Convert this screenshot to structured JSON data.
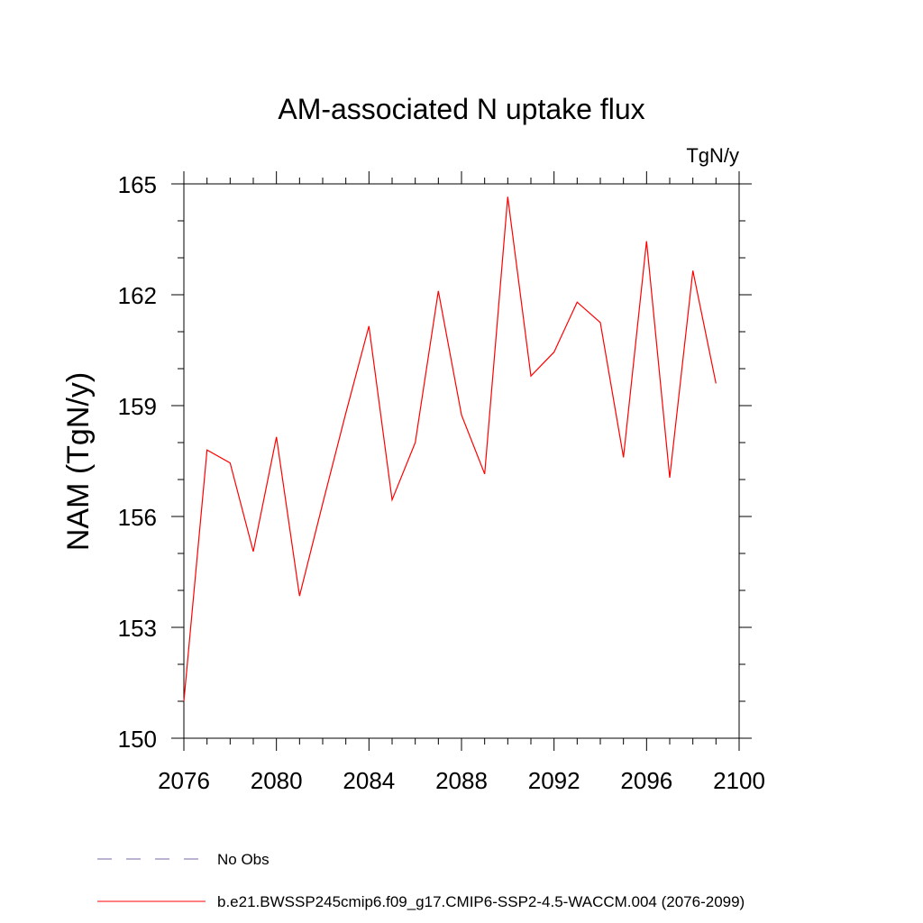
{
  "chart_data": {
    "type": "line",
    "title": "AM-associated N uptake flux",
    "units_label": "TgN/y",
    "xlabel": "",
    "ylabel": "NAM  (TgN/y)",
    "xlim": [
      2076,
      2100
    ],
    "ylim": [
      150,
      165
    ],
    "x_ticks": [
      2076,
      2080,
      2084,
      2088,
      2092,
      2096,
      2100
    ],
    "y_ticks": [
      150,
      153,
      156,
      159,
      162,
      165
    ],
    "x_tick_labels": [
      "2076",
      "2080",
      "2084",
      "2088",
      "2092",
      "2096",
      "2100"
    ],
    "y_tick_labels": [
      "150",
      "153",
      "156",
      "159",
      "162",
      "165"
    ],
    "grid": false,
    "series": [
      {
        "name": "b.e21.BWSSP245cmip6.f09_g17.CMIP6-SSP2-4.5-WACCM.004 (2076-2099)",
        "color": "#ff0000",
        "style": "solid",
        "x": [
          2076,
          2077,
          2078,
          2079,
          2080,
          2081,
          2082,
          2083,
          2084,
          2085,
          2086,
          2087,
          2088,
          2089,
          2090,
          2091,
          2092,
          2093,
          2094,
          2095,
          2096,
          2097,
          2098,
          2099
        ],
        "y": [
          151.0,
          157.8,
          157.45,
          155.05,
          158.15,
          153.85,
          156.35,
          158.8,
          161.15,
          156.45,
          158.0,
          162.1,
          158.75,
          157.15,
          164.65,
          159.8,
          160.45,
          161.8,
          161.25,
          157.6,
          163.45,
          157.05,
          162.65,
          159.6
        ]
      }
    ],
    "legend": [
      {
        "label": "No Obs",
        "color": "#7766aa",
        "style": "dashed"
      },
      {
        "label": "b.e21.BWSSP245cmip6.f09_g17.CMIP6-SSP2-4.5-WACCM.004 (2076-2099)",
        "color": "#ff0000",
        "style": "solid"
      }
    ],
    "legend_position": "bottom"
  }
}
